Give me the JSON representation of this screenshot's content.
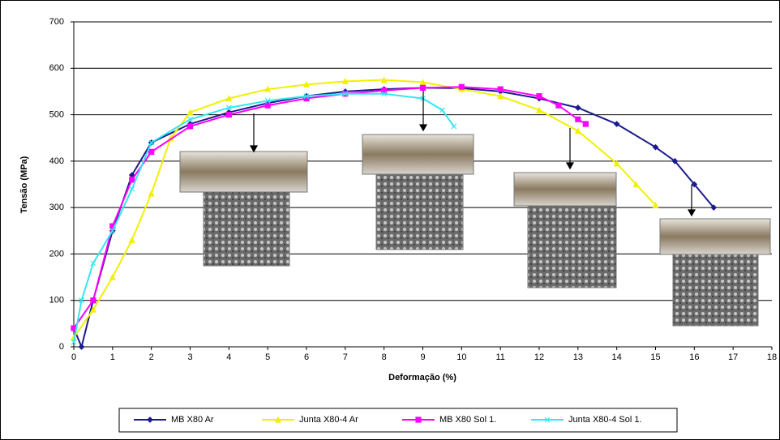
{
  "chart_data": {
    "type": "line",
    "xlabel": "Deformação (%)",
    "ylabel": "Tensão (MPa)",
    "xlim": [
      0,
      18
    ],
    "xticks": [
      0,
      1,
      2,
      3,
      4,
      5,
      6,
      7,
      8,
      9,
      10,
      11,
      12,
      13,
      14,
      15,
      16,
      17,
      18
    ],
    "ylim": [
      0,
      700
    ],
    "yticks": [
      0,
      100,
      200,
      300,
      400,
      500,
      600,
      700
    ],
    "grid": true,
    "legend": "bottom",
    "series": [
      {
        "name": "MB X80 Ar",
        "color": "#1a1a8c",
        "marker": "diamond",
        "x": [
          0,
          0.2,
          0.5,
          1,
          1.5,
          2,
          3,
          4,
          5,
          6,
          7,
          8,
          9,
          10,
          11,
          12,
          13,
          14,
          15,
          15.5,
          16,
          16.5
        ],
        "values": [
          40,
          0,
          100,
          250,
          370,
          440,
          480,
          505,
          525,
          540,
          550,
          555,
          558,
          557,
          550,
          535,
          515,
          480,
          430,
          400,
          350,
          300
        ]
      },
      {
        "name": "Junta X80-4 Ar",
        "color": "#f0f000",
        "marker": "triangle",
        "x": [
          0,
          0.5,
          1,
          1.5,
          2,
          2.5,
          3,
          4,
          5,
          6,
          7,
          8,
          9,
          10,
          11,
          12,
          13,
          14,
          14.5,
          15
        ],
        "values": [
          20,
          80,
          150,
          230,
          330,
          450,
          505,
          535,
          555,
          565,
          572,
          575,
          570,
          555,
          540,
          510,
          465,
          395,
          350,
          305
        ]
      },
      {
        "name": "MB X80 Sol 1.",
        "color": "#ff00ff",
        "marker": "square",
        "x": [
          0,
          0.5,
          1,
          1.5,
          2,
          3,
          4,
          5,
          6,
          7,
          8,
          9,
          10,
          11,
          12,
          12.5,
          13,
          13.2
        ],
        "values": [
          40,
          100,
          260,
          360,
          420,
          475,
          500,
          520,
          535,
          545,
          552,
          558,
          560,
          555,
          540,
          520,
          490,
          480
        ]
      },
      {
        "name": "Junta X80-4 Sol 1.",
        "color": "#33e6f0",
        "marker": "cross",
        "x": [
          0,
          0.2,
          0.5,
          1,
          1.5,
          2,
          3,
          4,
          5,
          6,
          7,
          8,
          9,
          9.5,
          9.8
        ],
        "values": [
          10,
          100,
          180,
          250,
          340,
          440,
          490,
          515,
          530,
          540,
          545,
          545,
          535,
          510,
          475
        ]
      }
    ]
  }
}
